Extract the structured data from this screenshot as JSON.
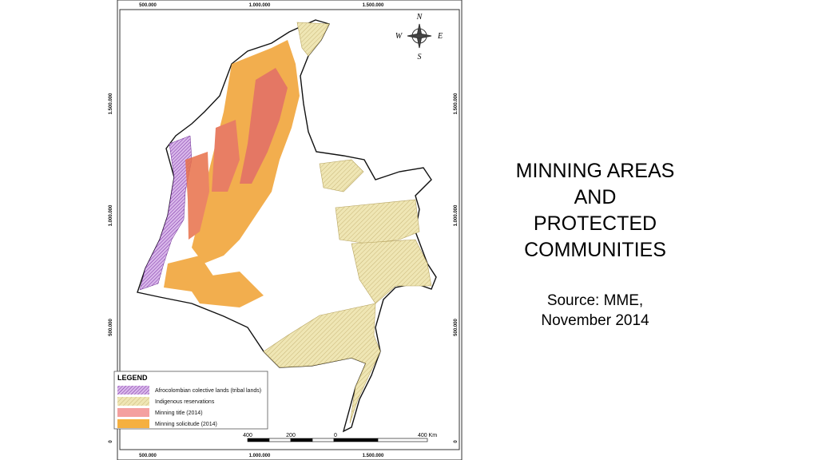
{
  "map": {
    "grid_labels": {
      "top": [
        "500.000",
        "1.000.000",
        "1.500.000"
      ],
      "bottom": [
        "500.000",
        "1.000.000",
        "1.500.000"
      ],
      "left": [
        "1.500.000",
        "1.000.000",
        "500.000",
        "0"
      ],
      "right": [
        "1.500.000",
        "1.000.000",
        "500.000",
        "0"
      ]
    },
    "compass": [
      "N",
      "E",
      "S",
      "W"
    ],
    "legend": {
      "title": "LEGEND",
      "items": [
        "Afrocolombian colective lands (tribal lands)",
        "Indigenous reservations",
        "Minning title (2014)",
        "Minning solicitude (2014)"
      ]
    },
    "scale_bar": [
      "400",
      "200",
      "0",
      "400 Km"
    ]
  },
  "title": [
    "MINNING AREAS",
    "AND",
    "PROTECTED",
    "COMMUNITIES"
  ],
  "source": [
    "Source: MME,",
    "November 2014"
  ]
}
